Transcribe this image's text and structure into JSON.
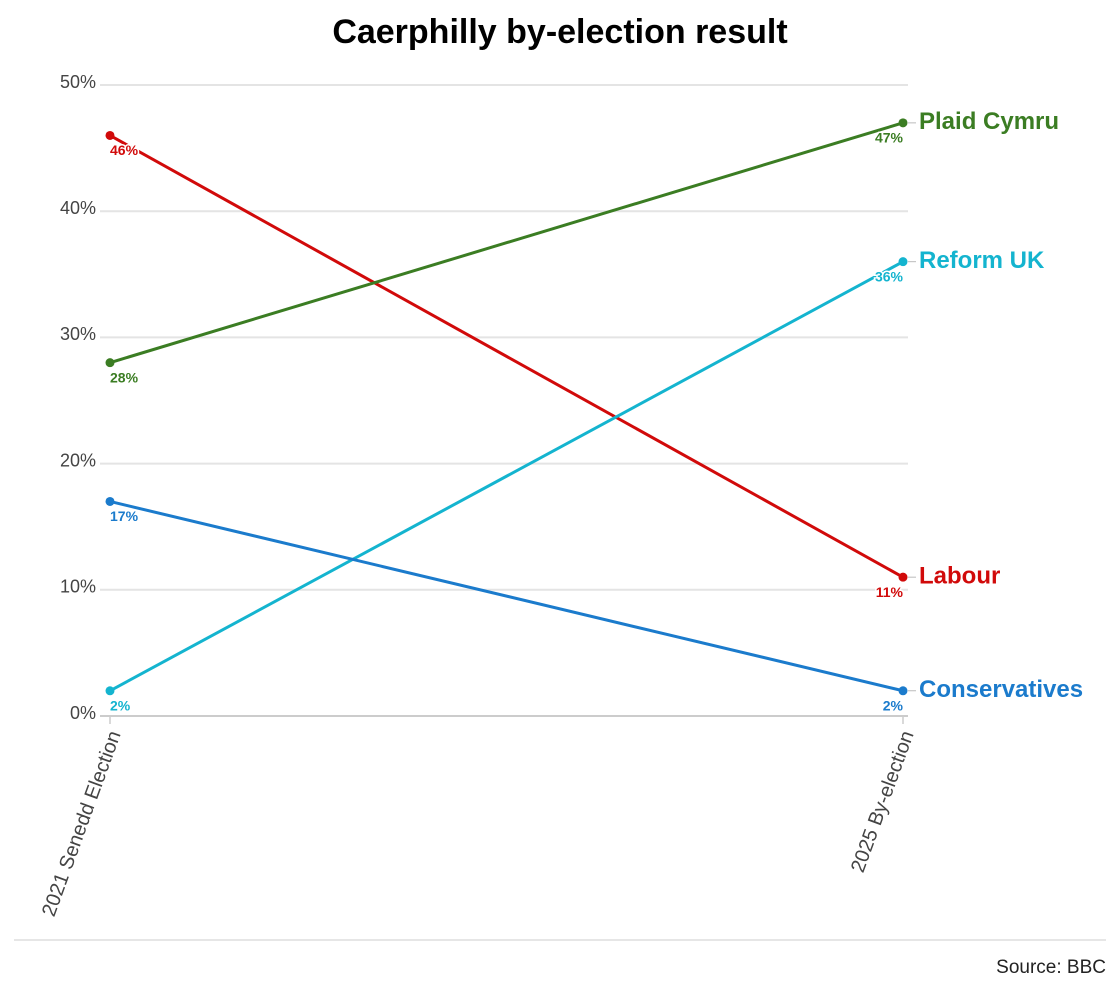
{
  "chart_data": {
    "type": "line",
    "title": "Caerphilly by-election result",
    "categories": [
      "2021 Senedd Election",
      "2025 By-election"
    ],
    "series": [
      {
        "name": "Labour",
        "color": "#d10a0a",
        "values": [
          46,
          11
        ],
        "value_labels": [
          "46%",
          "11%"
        ]
      },
      {
        "name": "Plaid Cymru",
        "color": "#3b7d23",
        "values": [
          28,
          47
        ],
        "value_labels": [
          "28%",
          "47%"
        ]
      },
      {
        "name": "Reform UK",
        "color": "#14b4cf",
        "values": [
          2,
          36
        ],
        "value_labels": [
          "2%",
          "36%"
        ]
      },
      {
        "name": "Conservatives",
        "color": "#1b7bcc",
        "values": [
          17,
          2
        ],
        "value_labels": [
          "17%",
          "2%"
        ]
      }
    ],
    "ylim": [
      0,
      50
    ],
    "yticks": [
      {
        "value": 0,
        "label": "0%"
      },
      {
        "value": 10,
        "label": "10%"
      },
      {
        "value": 20,
        "label": "20%"
      },
      {
        "value": 30,
        "label": "30%"
      },
      {
        "value": 40,
        "label": "40%"
      },
      {
        "value": 50,
        "label": "50%"
      }
    ],
    "grid": true,
    "source": "Source: BBC"
  }
}
